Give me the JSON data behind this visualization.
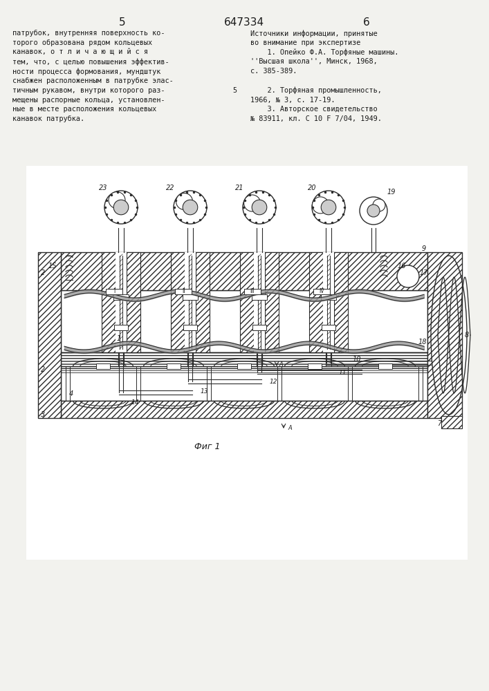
{
  "page_number_left": "5",
  "patent_number": "647334",
  "page_number_right": "6",
  "left_text_lines": [
    "патрубок, внутренняя поверхность ко-",
    "торого образована рядом кольцевых",
    "канавок, о т л и ч а ю щ и й с я",
    "тем, что, с целью повышения эффектив-",
    "ности процесса формования, мундштук",
    "снабжен расположенным в патрубке элас-",
    "тичным рукавом, внутри которого раз-",
    "мещены распорные кольца, установлен-",
    "ные в месте расположения кольцевых",
    "канавок патрубка."
  ],
  "right_text_lines": [
    "Источники информации, принятые",
    "во внимание при экспертизе",
    "    1. Опейко Ф.А. Торфяные машины.",
    "''Высшая школа'', Минск, 1968,",
    "с. 385-389.",
    "",
    "    2. Торфяная промышленность,",
    "1966, № 3, с. 17-19.",
    "    3. Авторское свидетельство",
    "№ 83911, кл. С 10 F 7/04, 1949."
  ],
  "line7_number": "5",
  "caption": "Фиг 1",
  "bg_color": "#f2f2ee",
  "text_color": "#1a1a1a",
  "lc": "#2a2a2a"
}
